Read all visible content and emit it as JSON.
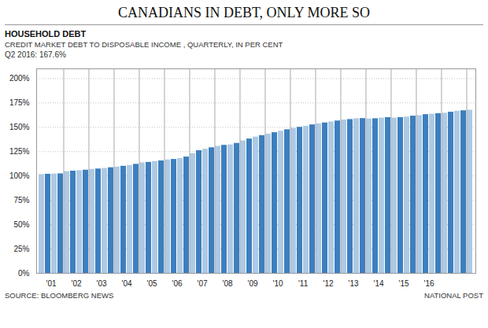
{
  "chart_data": {
    "type": "bar",
    "title": "CANADIANS IN DEBT, ONLY MORE SO",
    "subtitle": [
      "HOUSEHOLD DEBT",
      "CREDIT MARKET DEBT TO DISPOSABLE INCOME , QUARTERLY, IN PER CENT"
    ],
    "annotations": [
      "Q2 2016: 167.6%"
    ],
    "source": "SOURCE: BLOOMBERG NEWS",
    "credit": "NATIONAL POST",
    "categories": [
      null,
      "'01",
      null,
      null,
      null,
      "'02",
      null,
      null,
      null,
      "'03",
      null,
      null,
      null,
      "'04",
      null,
      null,
      null,
      "'05",
      null,
      null,
      null,
      "'06",
      null,
      null,
      null,
      "'07",
      null,
      null,
      null,
      "'08",
      null,
      null,
      null,
      "'09",
      null,
      null,
      null,
      "'10",
      null,
      null,
      null,
      "'11",
      null,
      null,
      null,
      "'12",
      null,
      null,
      null,
      "'13",
      null,
      null,
      null,
      "'14",
      null,
      null,
      null,
      "'15",
      null,
      null,
      null,
      "'16",
      null,
      null,
      null,
      null,
      null,
      null,
      null
    ],
    "values": [
      101.5,
      101.8,
      102.0,
      102.2,
      104.5,
      105.0,
      105.5,
      106.0,
      106.8,
      107.2,
      107.8,
      108.5,
      109.2,
      110.0,
      110.8,
      112.0,
      113.5,
      114.0,
      114.8,
      115.5,
      116.5,
      117.0,
      118.0,
      119.5,
      123.0,
      126.0,
      127.5,
      129.0,
      130.5,
      131.5,
      132.0,
      133.5,
      136.0,
      138.0,
      140.0,
      141.5,
      143.0,
      144.5,
      146.0,
      147.5,
      149.0,
      150.0,
      151.0,
      152.5,
      153.5,
      154.5,
      155.5,
      156.5,
      157.5,
      158.0,
      158.8,
      159.0,
      158.5,
      158.8,
      159.5,
      160.0,
      159.5,
      160.0,
      160.5,
      161.5,
      162.0,
      163.0,
      163.5,
      164.0,
      164.5,
      165.5,
      166.5,
      167.0,
      167.6
    ],
    "colors": [
      "#aec9e3",
      "#3d7fbf",
      "#aec9e3",
      "#3d7fbf",
      "#aec9e3",
      "#3d7fbf",
      "#aec9e3",
      "#3d7fbf",
      "#aec9e3",
      "#3d7fbf",
      "#aec9e3",
      "#3d7fbf",
      "#aec9e3",
      "#3d7fbf",
      "#aec9e3",
      "#3d7fbf",
      "#aec9e3",
      "#3d7fbf",
      "#aec9e3",
      "#3d7fbf",
      "#aec9e3",
      "#3d7fbf",
      "#aec9e3",
      "#3d7fbf",
      "#aec9e3",
      "#3d7fbf",
      "#aec9e3",
      "#3d7fbf",
      "#aec9e3",
      "#3d7fbf",
      "#aec9e3",
      "#3d7fbf",
      "#aec9e3",
      "#3d7fbf",
      "#aec9e3",
      "#3d7fbf",
      "#aec9e3",
      "#3d7fbf",
      "#aec9e3",
      "#3d7fbf",
      "#aec9e3",
      "#3d7fbf",
      "#aec9e3",
      "#3d7fbf",
      "#aec9e3",
      "#3d7fbf",
      "#aec9e3",
      "#3d7fbf",
      "#aec9e3",
      "#3d7fbf",
      "#aec9e3",
      "#3d7fbf",
      "#aec9e3",
      "#3d7fbf",
      "#aec9e3",
      "#3d7fbf",
      "#aec9e3",
      "#3d7fbf",
      "#aec9e3",
      "#3d7fbf",
      "#aec9e3",
      "#3d7fbf",
      "#aec9e3",
      "#3d7fbf",
      "#aec9e3",
      "#3d7fbf",
      "#aec9e3",
      "#3d7fbf",
      "#aec9e3"
    ],
    "ylim": [
      0,
      210
    ],
    "yticks": [
      {
        "value": 0,
        "label": "0%"
      },
      {
        "value": 25,
        "label": "25%"
      },
      {
        "value": 50,
        "label": "50%"
      },
      {
        "value": 75,
        "label": "75%"
      },
      {
        "value": 100,
        "label": "100%"
      },
      {
        "value": 125,
        "label": "125%"
      },
      {
        "value": 150,
        "label": "150%"
      },
      {
        "value": 175,
        "label": "175%"
      },
      {
        "value": 200,
        "label": "200%"
      }
    ],
    "grid": true
  }
}
